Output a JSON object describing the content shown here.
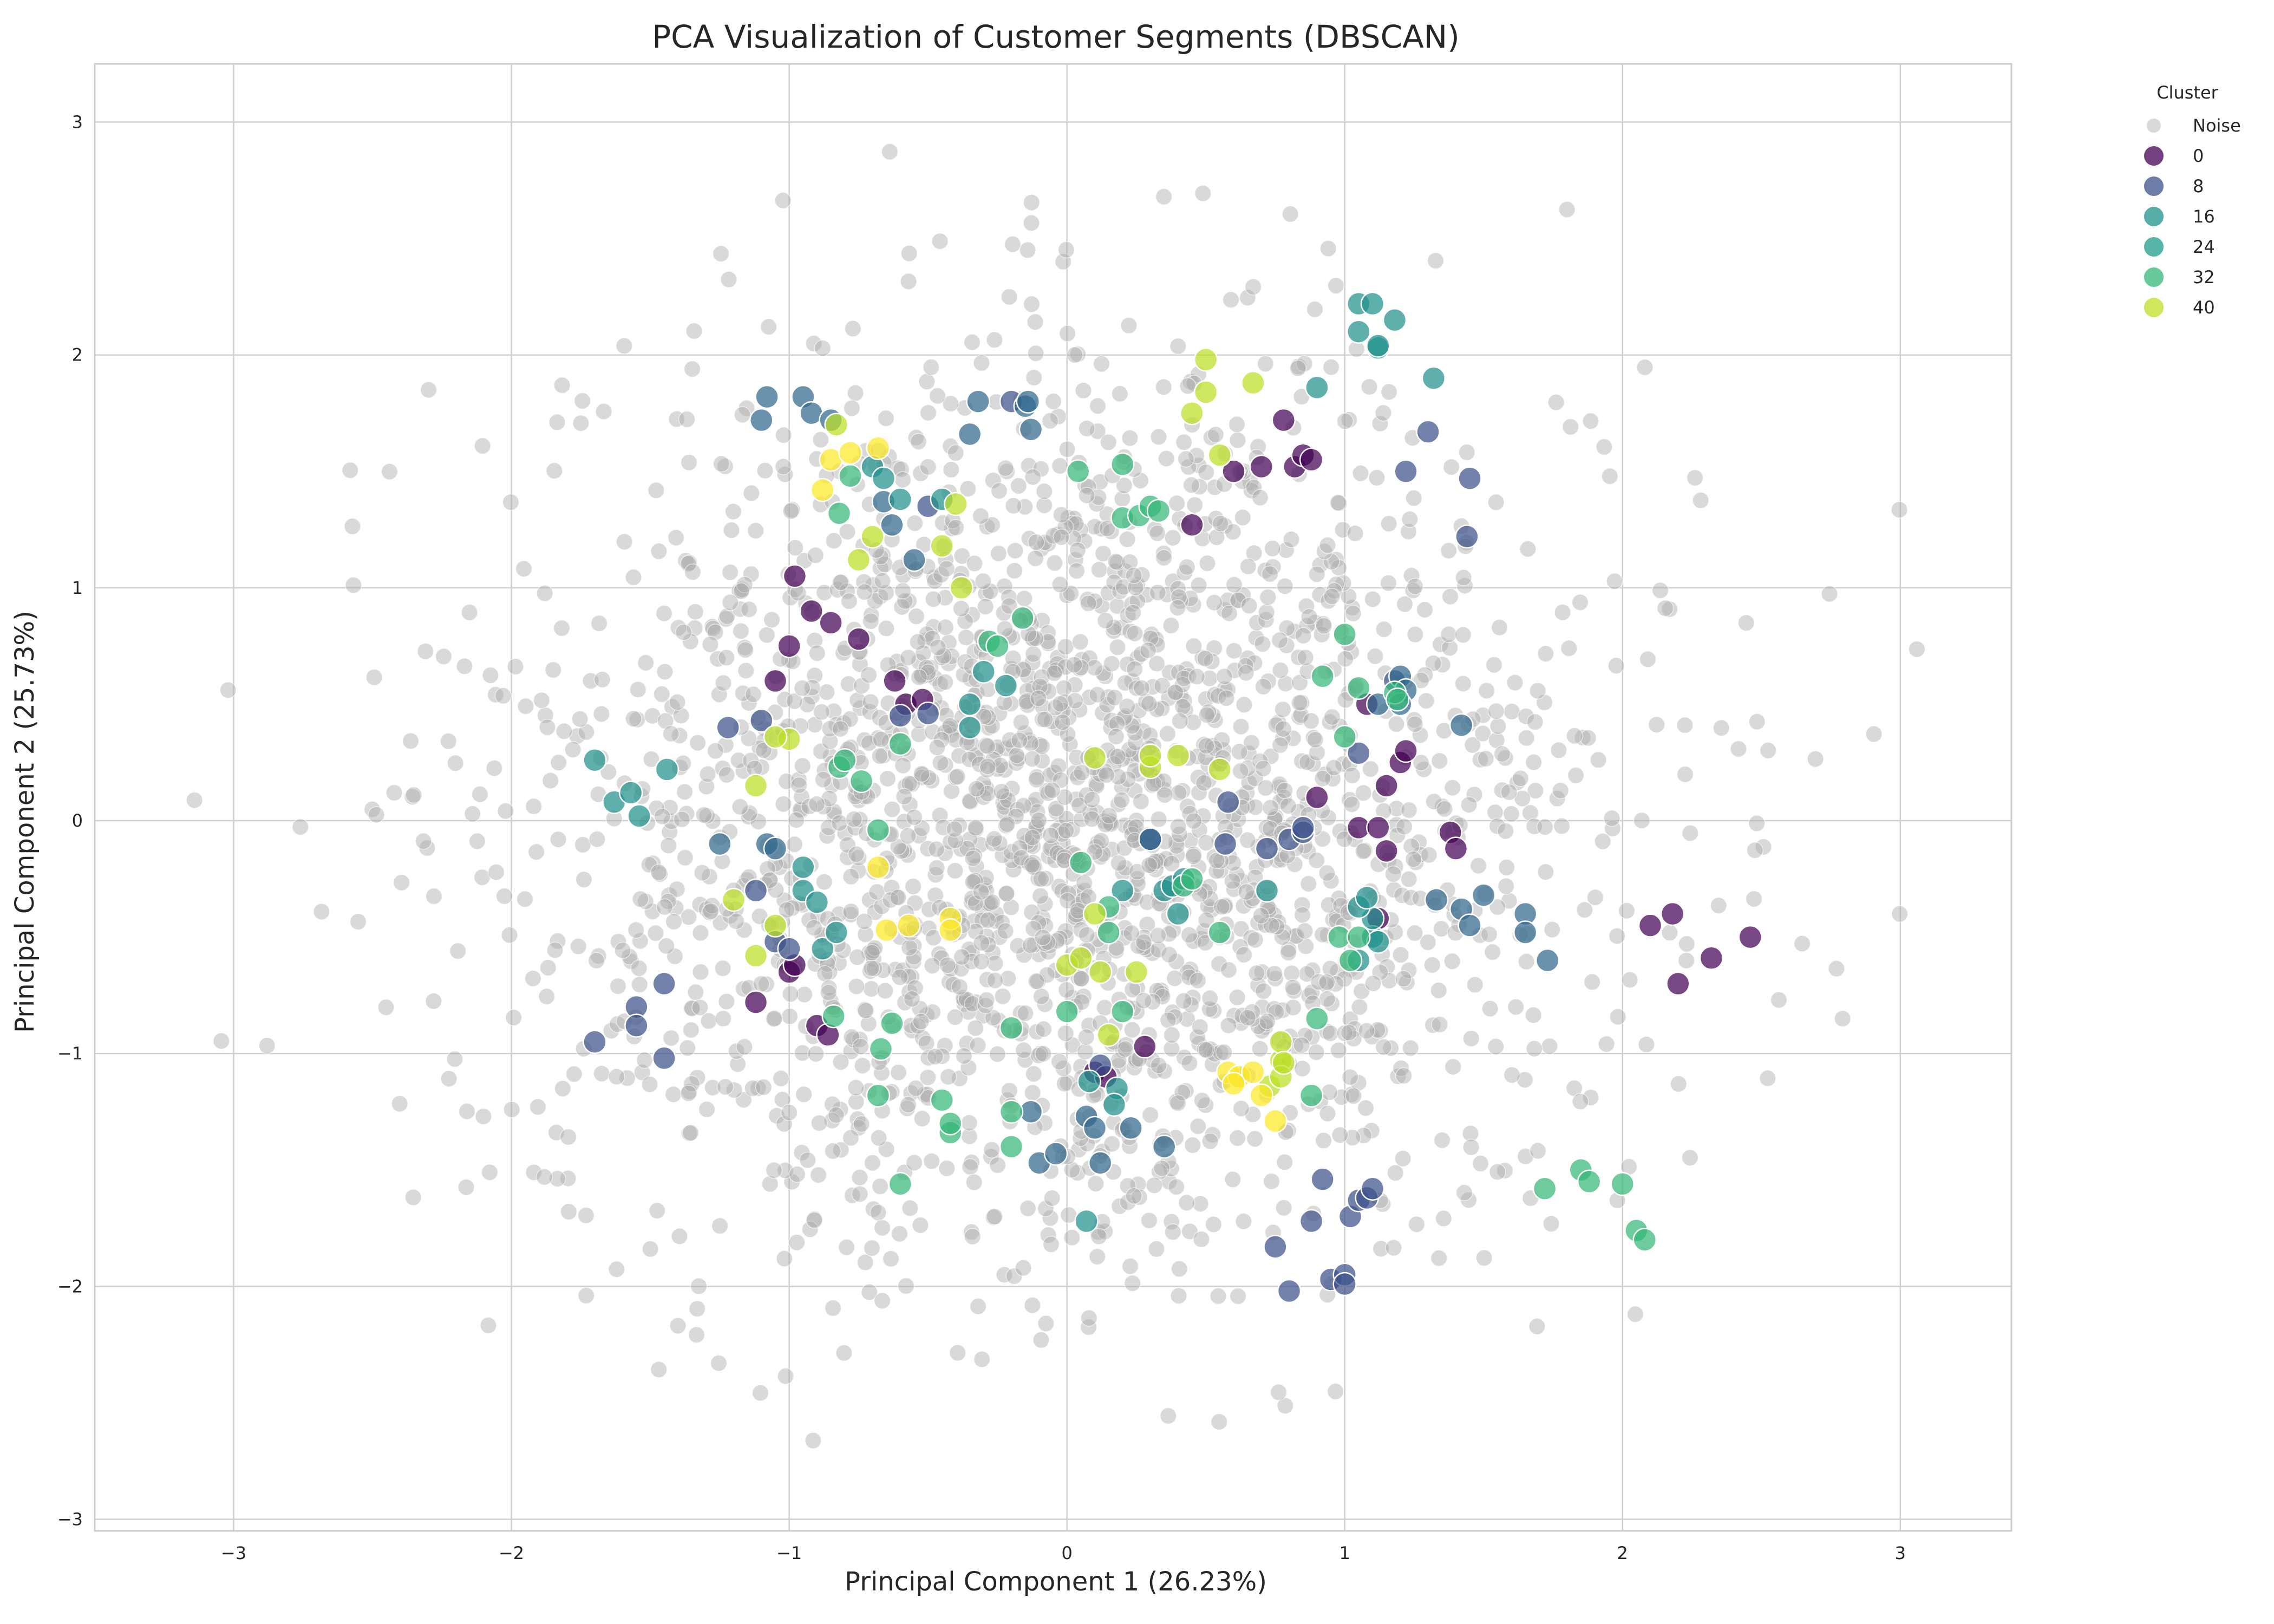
{
  "chart_data": {
    "type": "scatter",
    "title": "PCA Visualization of Customer Segments (DBSCAN)",
    "xlabel": "Principal Component 1 (26.23%)",
    "ylabel": "Principal Component 2 (25.73%)",
    "xlim": [
      -3.5,
      3.4
    ],
    "ylim": [
      -3.05,
      3.25
    ],
    "xticks": [
      -3,
      -2,
      -1,
      0,
      1,
      2,
      3
    ],
    "yticks": [
      -3,
      -2,
      -1,
      0,
      1,
      2,
      3
    ],
    "xtick_labels": [
      "−3",
      "−2",
      "−1",
      "0",
      "1",
      "2",
      "3"
    ],
    "ytick_labels": [
      "−3",
      "−2",
      "−1",
      "0",
      "1",
      "2",
      "3"
    ],
    "grid": true,
    "legend": {
      "title": "Cluster",
      "placement": "outside-top-right",
      "entries": [
        {
          "label": "Noise",
          "color": "#c0c0c0"
        },
        {
          "label": "0",
          "color": "#440154"
        },
        {
          "label": "8",
          "color": "#3b528b"
        },
        {
          "label": "16",
          "color": "#21918c"
        },
        {
          "label": "24",
          "color": "#1f9e89"
        },
        {
          "label": "32",
          "color": "#35b779"
        },
        {
          "label": "40",
          "color": "#bddf26"
        }
      ]
    },
    "noise": {
      "name": "Noise",
      "color": "#aaaaaa",
      "count": 2600,
      "distribution": "gaussian",
      "mean": [
        0,
        0
      ],
      "std": [
        0.95,
        0.95
      ],
      "x_extent": [
        -3.15,
        3.1
      ],
      "y_extent": [
        -2.8,
        2.95
      ]
    },
    "series": [
      {
        "name": "Cluster 0 (dark purple)",
        "color": "#440154",
        "points": [
          [
            -0.92,
            0.9
          ],
          [
            -0.85,
            0.85
          ],
          [
            -0.98,
            1.05
          ],
          [
            -1.05,
            0.6
          ],
          [
            -1.0,
            0.75
          ],
          [
            -0.58,
            0.5
          ],
          [
            -0.52,
            0.52
          ],
          [
            -0.62,
            0.6
          ],
          [
            -0.75,
            0.78
          ],
          [
            -1.0,
            -0.65
          ],
          [
            -0.98,
            -0.62
          ],
          [
            -1.12,
            -0.78
          ],
          [
            -0.9,
            -0.88
          ],
          [
            -0.86,
            -0.92
          ],
          [
            0.1,
            -1.08
          ],
          [
            0.14,
            -1.1
          ],
          [
            0.28,
            -0.97
          ],
          [
            0.6,
            1.5
          ],
          [
            0.7,
            1.52
          ],
          [
            0.78,
            1.72
          ],
          [
            0.82,
            1.52
          ],
          [
            0.85,
            1.57
          ],
          [
            0.88,
            1.55
          ],
          [
            0.45,
            1.27
          ],
          [
            1.05,
            -0.03
          ],
          [
            1.12,
            -0.03
          ],
          [
            1.2,
            0.25
          ],
          [
            1.22,
            0.3
          ],
          [
            1.15,
            0.15
          ],
          [
            1.08,
            0.5
          ],
          [
            1.38,
            -0.05
          ],
          [
            1.4,
            -0.12
          ],
          [
            1.15,
            -0.13
          ],
          [
            1.12,
            -0.42
          ],
          [
            2.1,
            -0.45
          ],
          [
            2.18,
            -0.4
          ],
          [
            2.2,
            -0.7
          ],
          [
            2.32,
            -0.59
          ],
          [
            2.46,
            -0.5
          ],
          [
            0.9,
            0.1
          ]
        ]
      },
      {
        "name": "Cluster 8 (indigo)",
        "color": "#3b528b",
        "points": [
          [
            -1.22,
            0.4
          ],
          [
            -1.1,
            0.43
          ],
          [
            -1.12,
            -0.3
          ],
          [
            -1.05,
            -0.52
          ],
          [
            -1.0,
            -0.55
          ],
          [
            -0.6,
            0.45
          ],
          [
            -0.5,
            0.46
          ],
          [
            -1.45,
            -0.7
          ],
          [
            -1.45,
            -1.02
          ],
          [
            -1.55,
            -0.8
          ],
          [
            -1.55,
            -0.88
          ],
          [
            -1.7,
            -0.95
          ],
          [
            0.12,
            -1.05
          ],
          [
            0.3,
            -0.08
          ],
          [
            0.58,
            0.08
          ],
          [
            0.57,
            -0.1
          ],
          [
            0.72,
            -0.12
          ],
          [
            0.8,
            -0.08
          ],
          [
            0.85,
            -0.05
          ],
          [
            0.85,
            -0.03
          ],
          [
            0.92,
            -1.54
          ],
          [
            0.88,
            -1.72
          ],
          [
            0.75,
            -1.83
          ],
          [
            0.8,
            -2.02
          ],
          [
            0.95,
            -1.97
          ],
          [
            1.0,
            -1.95
          ],
          [
            1.0,
            -1.99
          ],
          [
            1.02,
            -1.7
          ],
          [
            1.05,
            -1.63
          ],
          [
            1.08,
            -1.62
          ],
          [
            1.1,
            -1.58
          ],
          [
            1.05,
            0.29
          ],
          [
            1.22,
            1.5
          ],
          [
            1.3,
            1.67
          ],
          [
            1.45,
            1.47
          ],
          [
            1.44,
            1.22
          ],
          [
            1.18,
            0.6
          ],
          [
            -0.2,
            1.8
          ],
          [
            -0.5,
            1.35
          ]
        ]
      },
      {
        "name": "Cluster 16 (blue-teal)",
        "color": "#31688e",
        "points": [
          [
            -1.1,
            1.72
          ],
          [
            -1.08,
            1.82
          ],
          [
            -0.95,
            1.82
          ],
          [
            -0.92,
            1.75
          ],
          [
            -0.85,
            1.72
          ],
          [
            -0.35,
            1.66
          ],
          [
            -0.32,
            1.8
          ],
          [
            -0.15,
            1.78
          ],
          [
            -0.14,
            1.8
          ],
          [
            -0.13,
            1.68
          ],
          [
            -0.66,
            1.37
          ],
          [
            -0.63,
            1.27
          ],
          [
            -0.55,
            1.12
          ],
          [
            -1.25,
            -0.1
          ],
          [
            -1.08,
            -0.1
          ],
          [
            -1.05,
            -0.12
          ],
          [
            -0.13,
            -1.25
          ],
          [
            -0.1,
            -1.47
          ],
          [
            -0.04,
            -1.43
          ],
          [
            0.07,
            -1.27
          ],
          [
            0.1,
            -1.32
          ],
          [
            0.12,
            -1.47
          ],
          [
            0.23,
            -1.32
          ],
          [
            0.35,
            -1.4
          ],
          [
            0.3,
            -0.08
          ],
          [
            1.2,
            0.62
          ],
          [
            1.22,
            0.56
          ],
          [
            1.2,
            0.5
          ],
          [
            1.33,
            -0.34
          ],
          [
            1.42,
            -0.38
          ],
          [
            1.45,
            -0.45
          ],
          [
            1.5,
            -0.32
          ],
          [
            1.65,
            -0.4
          ],
          [
            1.65,
            -0.48
          ],
          [
            1.73,
            -0.6
          ],
          [
            1.42,
            0.41
          ],
          [
            1.12,
            0.5
          ]
        ]
      },
      {
        "name": "Cluster 24 (teal)",
        "color": "#21918c",
        "points": [
          [
            -1.7,
            0.26
          ],
          [
            -1.63,
            0.08
          ],
          [
            -1.57,
            0.12
          ],
          [
            -1.54,
            0.02
          ],
          [
            -1.44,
            0.22
          ],
          [
            -0.7,
            1.52
          ],
          [
            -0.66,
            1.47
          ],
          [
            -0.6,
            1.38
          ],
          [
            -0.45,
            1.38
          ],
          [
            -0.35,
            0.5
          ],
          [
            -0.35,
            0.4
          ],
          [
            -0.3,
            0.64
          ],
          [
            -0.22,
            0.58
          ],
          [
            0.72,
            -0.3
          ],
          [
            0.35,
            -0.3
          ],
          [
            0.38,
            -0.28
          ],
          [
            0.4,
            -0.4
          ],
          [
            0.42,
            -0.25
          ],
          [
            0.2,
            -0.3
          ],
          [
            0.18,
            -1.15
          ],
          [
            0.17,
            -1.22
          ],
          [
            0.08,
            -1.12
          ],
          [
            0.07,
            -1.72
          ],
          [
            -0.95,
            -0.2
          ],
          [
            -0.95,
            -0.3
          ],
          [
            -0.9,
            -0.35
          ],
          [
            -0.88,
            -0.55
          ],
          [
            -0.83,
            -0.48
          ],
          [
            1.05,
            2.22
          ],
          [
            1.05,
            2.1
          ],
          [
            1.1,
            2.22
          ],
          [
            1.12,
            2.03
          ],
          [
            1.12,
            2.04
          ],
          [
            1.18,
            2.15
          ],
          [
            1.32,
            1.9
          ],
          [
            0.9,
            1.86
          ],
          [
            1.05,
            -0.6
          ],
          [
            1.1,
            -0.5
          ],
          [
            1.1,
            -0.42
          ],
          [
            1.12,
            -0.52
          ],
          [
            1.05,
            -0.37
          ],
          [
            1.08,
            -0.33
          ]
        ]
      },
      {
        "name": "Cluster 32 (green)",
        "color": "#35b779",
        "points": [
          [
            -0.82,
            0.23
          ],
          [
            -0.8,
            0.26
          ],
          [
            -0.74,
            0.17
          ],
          [
            -0.82,
            1.32
          ],
          [
            -0.78,
            1.48
          ],
          [
            -0.68,
            -0.04
          ],
          [
            -0.6,
            0.33
          ],
          [
            0.04,
            1.5
          ],
          [
            0.2,
            1.53
          ],
          [
            0.2,
            1.3
          ],
          [
            0.26,
            1.31
          ],
          [
            0.3,
            1.35
          ],
          [
            0.33,
            1.33
          ],
          [
            -0.16,
            0.87
          ],
          [
            -0.28,
            0.77
          ],
          [
            -0.25,
            0.75
          ],
          [
            0.42,
            -0.28
          ],
          [
            0.55,
            -0.48
          ],
          [
            0.45,
            -0.25
          ],
          [
            0.15,
            -0.48
          ],
          [
            0.15,
            -0.37
          ],
          [
            0.2,
            -0.82
          ],
          [
            0.05,
            -0.18
          ],
          [
            0.0,
            -0.82
          ],
          [
            -0.2,
            -1.25
          ],
          [
            -0.2,
            -0.89
          ],
          [
            -0.45,
            -1.2
          ],
          [
            -0.42,
            -1.34
          ],
          [
            -0.42,
            -1.3
          ],
          [
            -0.63,
            -0.87
          ],
          [
            -0.67,
            -0.98
          ],
          [
            -0.68,
            -1.18
          ],
          [
            -0.6,
            -1.56
          ],
          [
            -0.84,
            -0.84
          ],
          [
            -0.2,
            -1.4
          ],
          [
            0.88,
            -1.18
          ],
          [
            0.9,
            -0.85
          ],
          [
            1.0,
            0.36
          ],
          [
            0.98,
            -0.5
          ],
          [
            1.02,
            -0.6
          ],
          [
            1.05,
            -0.5
          ],
          [
            1.05,
            0.57
          ],
          [
            1.18,
            0.55
          ],
          [
            1.19,
            0.52
          ],
          [
            0.92,
            0.62
          ],
          [
            1.0,
            0.8
          ],
          [
            1.72,
            -1.58
          ],
          [
            1.85,
            -1.5
          ],
          [
            1.88,
            -1.55
          ],
          [
            2.0,
            -1.56
          ],
          [
            2.05,
            -1.76
          ],
          [
            2.08,
            -1.8
          ]
        ]
      },
      {
        "name": "Cluster 40 (yellow-green)",
        "color": "#bddf26",
        "points": [
          [
            -1.12,
            0.15
          ],
          [
            -1.12,
            -0.58
          ],
          [
            -1.05,
            -0.45
          ],
          [
            -1.0,
            0.35
          ],
          [
            -1.05,
            0.36
          ],
          [
            -1.2,
            -0.34
          ],
          [
            -0.83,
            1.7
          ],
          [
            -0.75,
            1.12
          ],
          [
            -0.7,
            1.22
          ],
          [
            -0.45,
            1.18
          ],
          [
            -0.4,
            1.36
          ],
          [
            -0.38,
            1.0
          ],
          [
            0.45,
            1.75
          ],
          [
            0.5,
            1.84
          ],
          [
            0.5,
            1.98
          ],
          [
            0.55,
            1.57
          ],
          [
            0.67,
            1.88
          ],
          [
            0.1,
            0.27
          ],
          [
            0.3,
            0.23
          ],
          [
            0.3,
            0.28
          ],
          [
            0.4,
            0.28
          ],
          [
            0.55,
            0.22
          ],
          [
            0.1,
            -0.4
          ],
          [
            0.12,
            -0.65
          ],
          [
            0.15,
            -0.92
          ],
          [
            0.25,
            -0.65
          ],
          [
            0.0,
            -0.62
          ],
          [
            0.05,
            -0.59
          ],
          [
            0.77,
            -1.03
          ],
          [
            0.77,
            -0.95
          ],
          [
            0.73,
            -1.14
          ],
          [
            0.77,
            -1.1
          ],
          [
            0.78,
            -1.04
          ]
        ]
      },
      {
        "name": "Cluster 48 (yellow)",
        "color": "#fde725",
        "points": [
          [
            -0.88,
            1.42
          ],
          [
            -0.85,
            1.55
          ],
          [
            -0.78,
            1.58
          ],
          [
            -0.68,
            1.6
          ],
          [
            -0.68,
            -0.2
          ],
          [
            -0.65,
            -0.47
          ],
          [
            -0.57,
            -0.45
          ],
          [
            -0.42,
            -0.42
          ],
          [
            -0.42,
            -0.47
          ],
          [
            0.58,
            -1.08
          ],
          [
            0.62,
            -1.1
          ],
          [
            0.67,
            -1.08
          ],
          [
            0.6,
            -1.13
          ],
          [
            0.7,
            -1.18
          ],
          [
            0.75,
            -1.29
          ]
        ]
      }
    ]
  }
}
